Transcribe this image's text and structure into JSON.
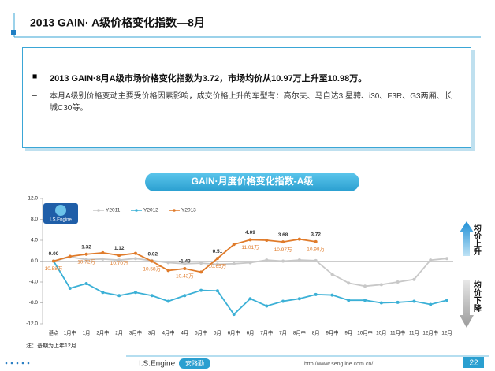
{
  "slide": {
    "title": "2013 GAIN· A级价格变化指数—8月",
    "bullet": "2013 GAIN·8月A级市场价格变化指数为3.72，市场均价从10.97万上升至10.98万。",
    "detail": "本月A级别价格变动主要受价格因素影响，成交价格上升的车型有：高尔夫、马自达3 星骋、i30、F3R、G3两厢、长城C30等。",
    "logo": "I.S.Engine",
    "up_note": "均价上升",
    "down_note": "均价下降",
    "footnote": "注：基期为上年12月",
    "footer_brand": "I.S.Engine",
    "footer_tag": "安路勤",
    "footer_url": "http://www.seng ine.com.cn/",
    "page_number": "22"
  },
  "chart_data": {
    "type": "line",
    "title": "GAIN·月度价格变化指数-A级",
    "categories": [
      "基点",
      "1月中",
      "1月",
      "2月中",
      "2月",
      "3月中",
      "3月",
      "4月中",
      "4月",
      "5月中",
      "5月",
      "6月中",
      "6月",
      "7月中",
      "7月",
      "8月中",
      "8月",
      "9月中",
      "9月",
      "10月中",
      "10月",
      "11月中",
      "11月",
      "12月中",
      "12月"
    ],
    "ylim": [
      -12,
      12
    ],
    "yticks": [
      {
        "value": -12,
        "label": "-12.0"
      },
      {
        "value": -8,
        "label": "-8.0"
      },
      {
        "value": -4,
        "label": "-4.0"
      },
      {
        "value": 0,
        "label": "0.0"
      },
      {
        "value": 4,
        "label": "4.0"
      },
      {
        "value": 8,
        "label": "8.0"
      },
      {
        "value": 12,
        "label": "12.0"
      }
    ],
    "series": [
      {
        "name": "Y2011",
        "color": "#c8c8c8",
        "values": [
          0,
          0.8,
          0.3,
          0.4,
          0.2,
          0.5,
          0.1,
          -0.3,
          -0.5,
          -0.4,
          -0.6,
          -0.5,
          -0.3,
          0.2,
          0,
          0.2,
          0.1,
          -2.5,
          -4.2,
          -4.8,
          -4.5,
          -4.0,
          -3.5,
          0.2,
          0.5
        ]
      },
      {
        "name": "Y2012",
        "color": "#3bb0d6",
        "values": [
          0,
          -5.2,
          -4.3,
          -6.0,
          -6.6,
          -6.0,
          -6.6,
          -7.7,
          -6.6,
          -5.6,
          -5.7,
          -10.2,
          -7.2,
          -8.6,
          -7.7,
          -7.2,
          -6.4,
          -6.5,
          -7.5,
          -7.5,
          -8.0,
          -7.9,
          -7.7,
          -8.3,
          -7.5
        ]
      },
      {
        "name": "Y2013",
        "color": "#e07b2a",
        "values": [
          0,
          0.9,
          1.32,
          1.6,
          1.12,
          1.5,
          -0.02,
          -1.8,
          -1.43,
          -2.1,
          0.51,
          3.2,
          4.09,
          4.0,
          3.68,
          4.2,
          3.72,
          null,
          null,
          null,
          null,
          null,
          null,
          null,
          null
        ],
        "value_labels": [
          "0.00",
          null,
          "1.32",
          null,
          "1.12",
          null,
          "-0.02",
          null,
          "-1.43",
          null,
          "0.51",
          null,
          "4.09",
          null,
          "3.68",
          null,
          "3.72",
          null,
          null,
          null,
          null,
          null,
          null,
          null,
          null
        ],
        "price_labels": [
          "10.58万",
          null,
          "10.72万",
          null,
          "10.70万",
          null,
          "10.58万",
          null,
          "10.43万",
          null,
          "10.65万",
          null,
          "11.01万",
          null,
          "10.97万",
          null,
          "10.98万",
          null,
          null,
          null,
          null,
          null,
          null,
          null,
          null
        ]
      }
    ]
  }
}
